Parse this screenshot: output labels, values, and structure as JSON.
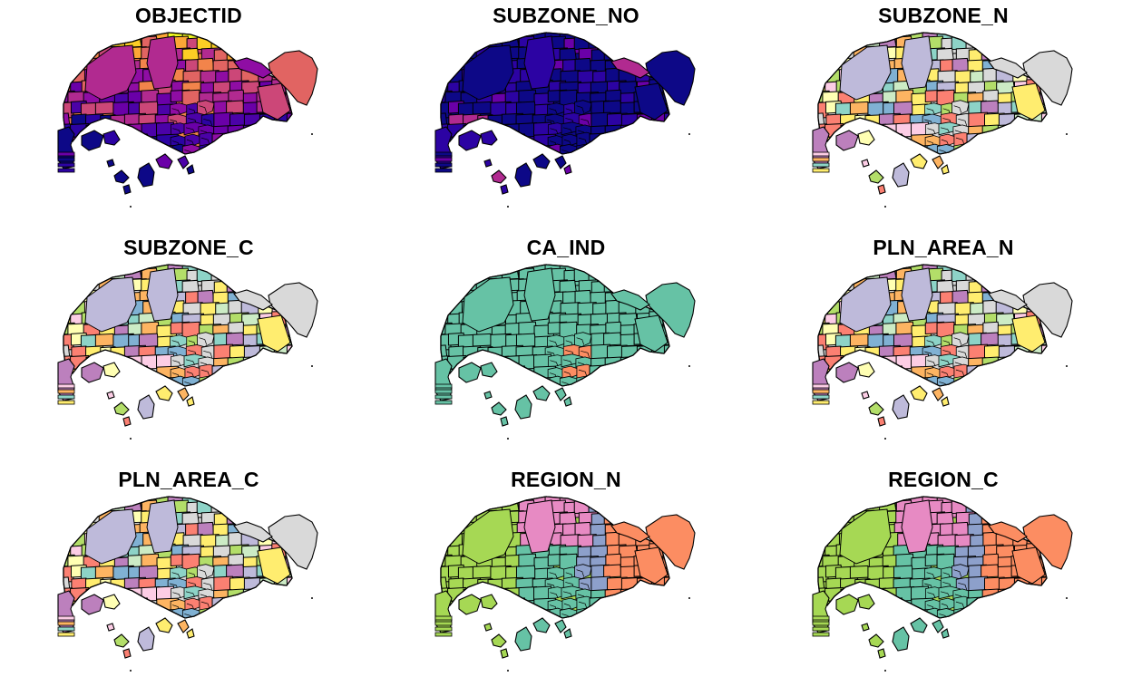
{
  "panels": [
    {
      "title": "OBJECTID",
      "scheme": "plasma"
    },
    {
      "title": "SUBZONE_NO",
      "scheme": "plasma_low"
    },
    {
      "title": "SUBZONE_N",
      "scheme": "set3"
    },
    {
      "title": "SUBZONE_C",
      "scheme": "set3"
    },
    {
      "title": "CA_IND",
      "scheme": "ca"
    },
    {
      "title": "PLN_AREA_N",
      "scheme": "set3"
    },
    {
      "title": "PLN_AREA_C",
      "scheme": "set3"
    },
    {
      "title": "REGION_N",
      "scheme": "region"
    },
    {
      "title": "REGION_C",
      "scheme": "region"
    }
  ],
  "colors": {
    "border": "#000000",
    "plasma": [
      "#0d0887",
      "#2c03a3",
      "#4b02a8",
      "#6a00a8",
      "#8f0da4",
      "#b12a90",
      "#cc4778",
      "#e16462",
      "#f2844b",
      "#fca636",
      "#fcce25",
      "#f0f921"
    ],
    "set3": [
      "#8dd3c7",
      "#ffffb3",
      "#bebada",
      "#fb8072",
      "#80b1d3",
      "#fdb462",
      "#b3de69",
      "#fccde5",
      "#d9d9d9",
      "#bc80bd",
      "#ccebc5",
      "#ffed6f"
    ],
    "region": [
      "#66c2a5",
      "#fc8d62",
      "#8da0cb",
      "#e78ac3",
      "#a6d854"
    ],
    "ca": [
      "#66c2a5",
      "#fc8d62"
    ]
  }
}
